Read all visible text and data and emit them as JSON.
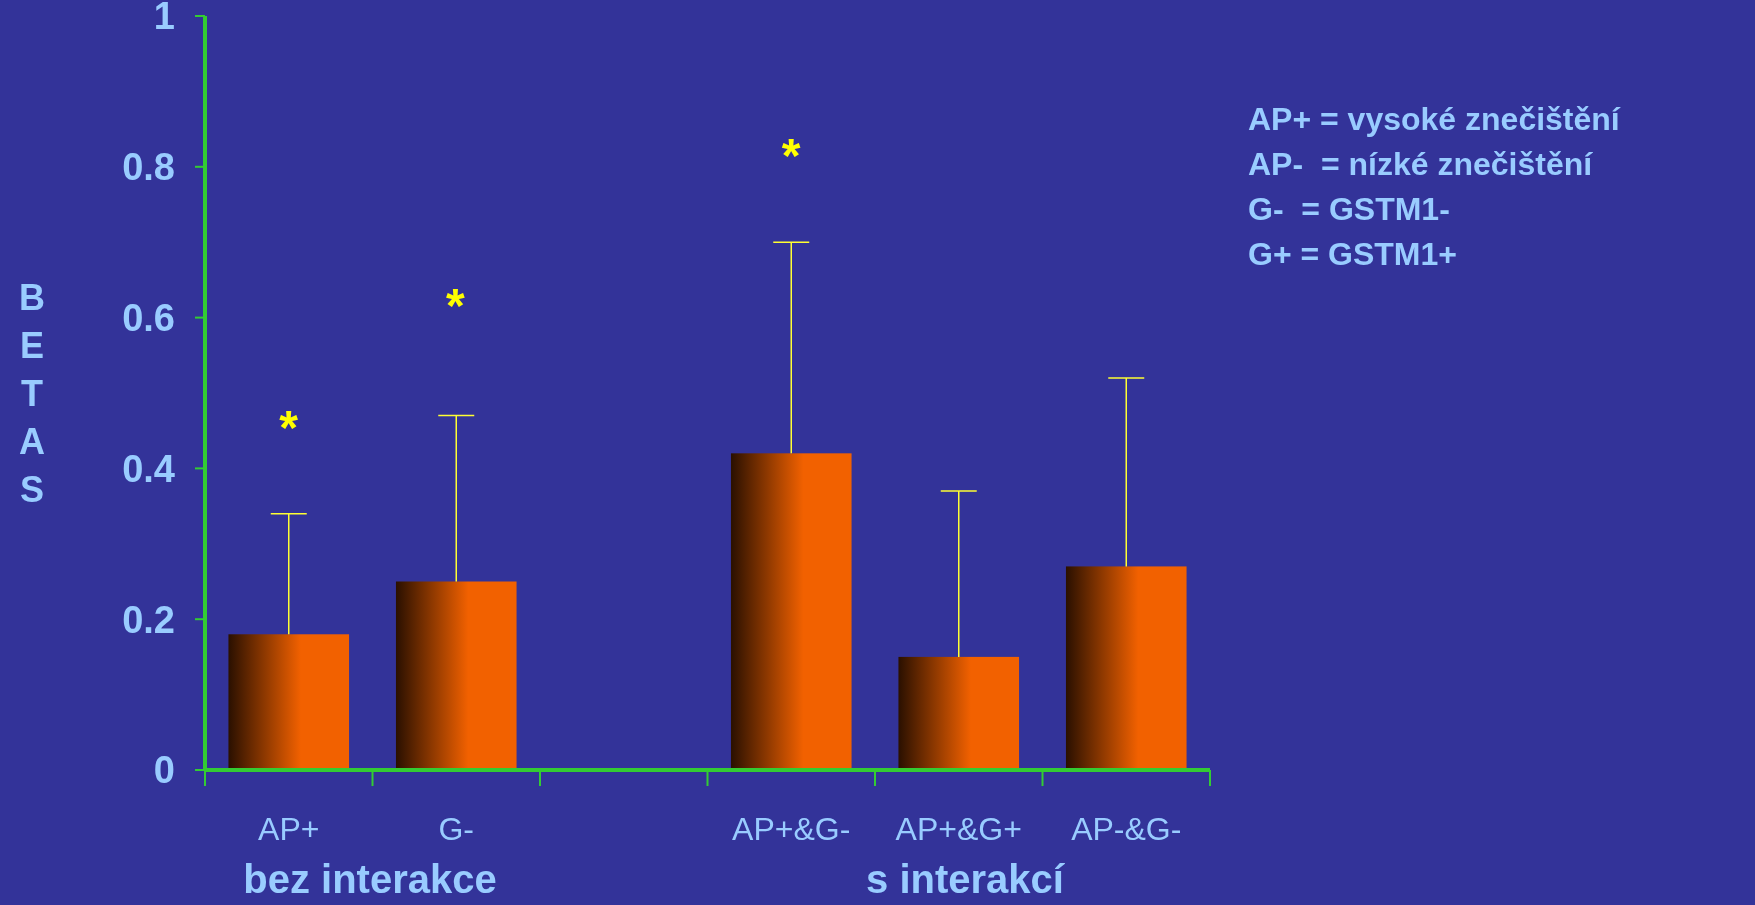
{
  "chart_data": {
    "type": "bar",
    "ylabel": "BETAS",
    "categories": [
      "AP+",
      "G-",
      null,
      "AP+&G-",
      "AP+&G+",
      "AP-&G-"
    ],
    "values": [
      0.18,
      0.25,
      null,
      0.42,
      0.15,
      0.27
    ],
    "errors": [
      [
        0.18,
        0.34
      ],
      [
        0.25,
        0.47
      ],
      null,
      [
        0.42,
        0.7
      ],
      [
        0.15,
        0.37
      ],
      [
        0.27,
        0.52
      ]
    ],
    "color": "#f26100",
    "ylim": [
      0,
      1
    ],
    "yticks": [
      0,
      0.2,
      0.4,
      0.6,
      0.8,
      1
    ],
    "grid": false,
    "annotations": [
      "*",
      "*",
      "*",
      "bez interakce",
      "s interakcí",
      "AP+ = vysoké znečištění",
      "AP-  = nízké znečištění",
      "G-  = GSTM1-",
      "G+ = GSTM1+"
    ]
  }
}
